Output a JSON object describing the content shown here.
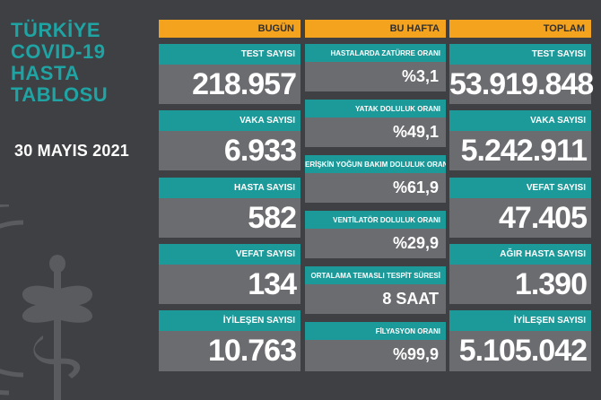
{
  "side": {
    "title_lines": [
      "TÜRKİYE",
      "COVID-19",
      "HASTA",
      "TABLOSU"
    ],
    "date": "30 MAYIS 2021"
  },
  "bugun": {
    "header": "BUGÜN",
    "cards": [
      {
        "label": "TEST SAYISI",
        "value": "218.957"
      },
      {
        "label": "VAKA SAYISI",
        "value": "6.933"
      },
      {
        "label": "HASTA SAYISI",
        "value": "582"
      },
      {
        "label": "VEFAT SAYISI",
        "value": "134"
      },
      {
        "label": "İYİLEŞEN SAYISI",
        "value": "10.763"
      }
    ]
  },
  "bu_hafta": {
    "header": "BU HAFTA",
    "cards": [
      {
        "label": "HASTALARDA ZATÜRRE ORANI",
        "value": "%3,1"
      },
      {
        "label": "YATAK DOLULUK ORANI",
        "value": "%49,1"
      },
      {
        "label": "ERİŞKİN YOĞUN BAKIM DOLULUK ORANI",
        "value": "%61,9"
      },
      {
        "label": "VENTİLATÖR DOLULUK ORANI",
        "value": "%29,9"
      },
      {
        "label": "ORTALAMA TEMASLI TESPİT SÜRESİ",
        "value": "8 SAAT"
      },
      {
        "label": "FİLYASYON ORANI",
        "value": "%99,9"
      }
    ]
  },
  "toplam": {
    "header": "TOPLAM",
    "cards": [
      {
        "label": "TEST SAYISI",
        "value": "53.919.848"
      },
      {
        "label": "VAKA SAYISI",
        "value": "5.242.911"
      },
      {
        "label": "VEFAT SAYISI",
        "value": "47.405"
      },
      {
        "label": "AĞIR HASTA SAYISI",
        "value": "1.390"
      },
      {
        "label": "İYİLEŞEN SAYISI",
        "value": "5.105.042"
      }
    ]
  },
  "colors": {
    "background": "#3f4044",
    "accent_orange": "#f4a31e",
    "accent_teal": "#1c9a9a",
    "card_gray": "#6b6c70",
    "title_teal": "#1fa3a3"
  },
  "icons": {
    "emblem": "health-ministry-caduceus-emblem"
  }
}
